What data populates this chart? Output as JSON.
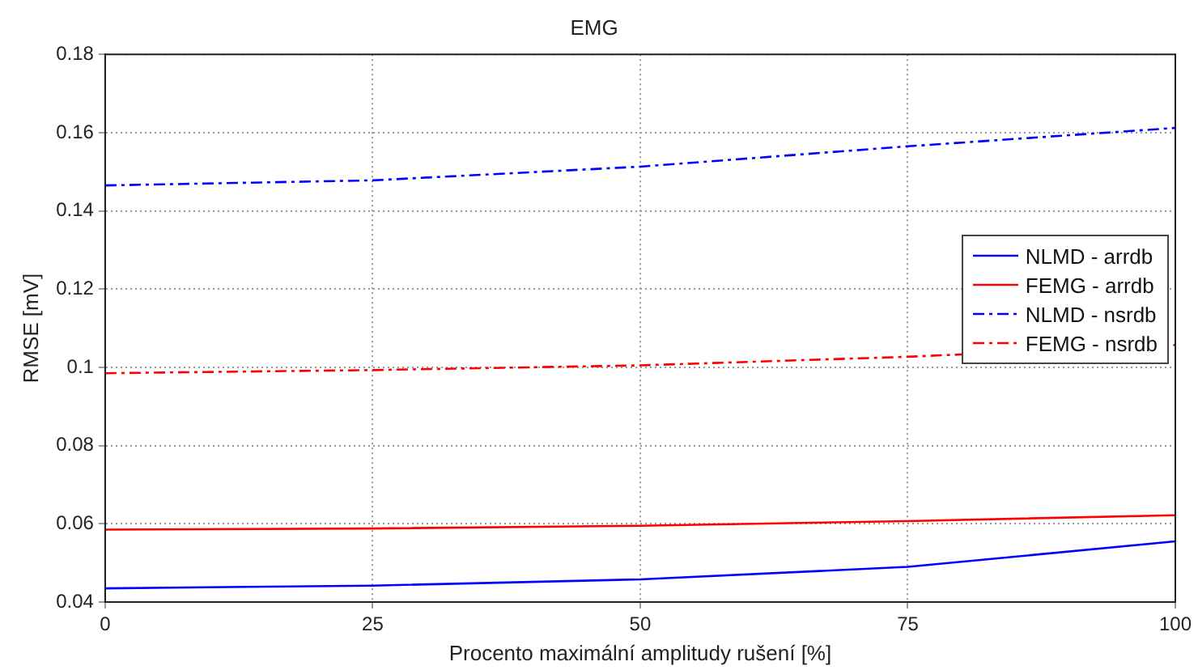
{
  "chart_data": {
    "type": "line",
    "title": "EMG",
    "xlabel": "Procento maximální amplitudy rušení [%]",
    "ylabel": "RMSE [mV]",
    "x": [
      0,
      25,
      50,
      75,
      100
    ],
    "series": [
      {
        "name": "NLMD - arrdb",
        "color": "#0000ff",
        "line_style": "solid",
        "values": [
          0.0435,
          0.0442,
          0.0458,
          0.049,
          0.0555
        ]
      },
      {
        "name": "FEMG - arrdb",
        "color": "#ff0000",
        "line_style": "solid",
        "values": [
          0.0585,
          0.0588,
          0.0595,
          0.0607,
          0.0622
        ]
      },
      {
        "name": "NLMD - nsrdb",
        "color": "#0000ff",
        "line_style": "dashed",
        "values": [
          0.1465,
          0.1478,
          0.1513,
          0.1565,
          0.1612
        ]
      },
      {
        "name": "FEMG - nsrdb",
        "color": "#ff0000",
        "line_style": "dashed",
        "values": [
          0.0985,
          0.0993,
          0.1005,
          0.1027,
          0.1057
        ]
      }
    ],
    "xlim": [
      0,
      100
    ],
    "xticks": [
      0,
      25,
      50,
      75,
      100
    ],
    "ylim": [
      0.04,
      0.18
    ],
    "yticks": [
      0.04,
      0.06,
      0.08,
      0.1,
      0.12,
      0.14,
      0.16,
      0.18
    ],
    "grid": true,
    "legend": "right",
    "marker": "none"
  }
}
